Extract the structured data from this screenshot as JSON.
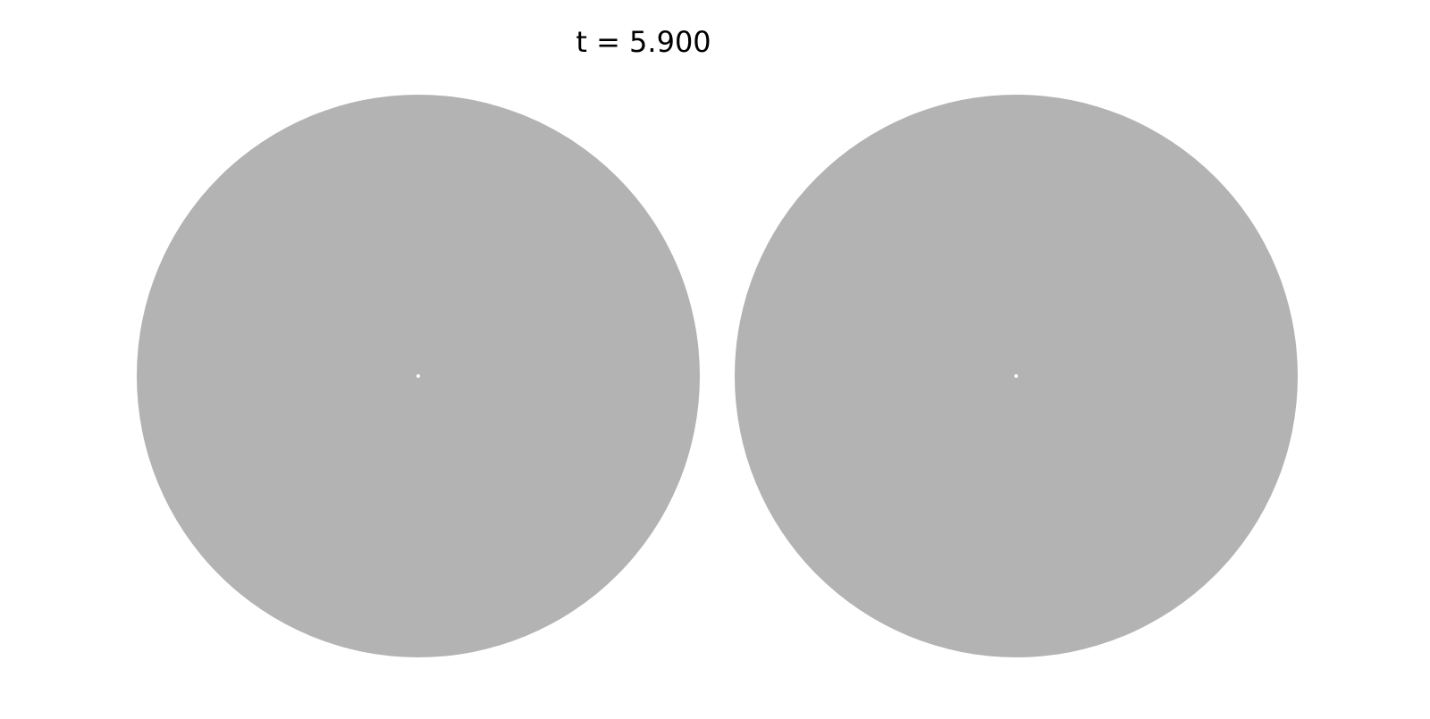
{
  "figure": {
    "title": "t = 5.900",
    "disk_color": "#b3b3b3",
    "center_marker_color": "#ffffff",
    "panels": [
      {
        "name": "left"
      },
      {
        "name": "right"
      }
    ]
  }
}
